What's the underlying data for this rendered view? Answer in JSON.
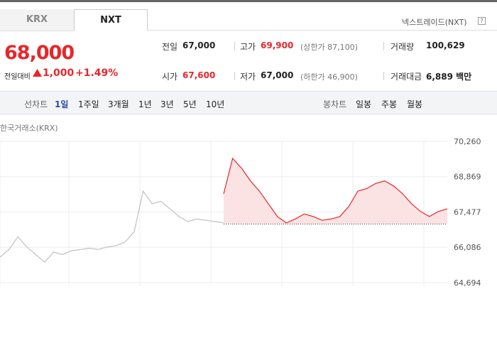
{
  "tabs": [
    "KRX",
    "NXT"
  ],
  "market_link": "넥스트레이드(NXT)",
  "help_icon": "?",
  "price": {
    "current": "68,000",
    "change_label": "전일대비",
    "change": "1,000",
    "change_pct": "+1.49%"
  },
  "stats": [
    [
      "전일",
      "67,000",
      ""
    ],
    [
      "고가",
      "69,900",
      "(상한가 87,100)"
    ],
    [
      "거래량",
      "100,629",
      ""
    ],
    [
      "시가",
      "67,600",
      ""
    ],
    [
      "저가",
      "67,000",
      "(하한가 46,900)"
    ],
    [
      "거래대금",
      "6,889 백만",
      ""
    ]
  ],
  "line_chart_label": "선차트",
  "line_periods": [
    "1일",
    "1주일",
    "3개월",
    "1년",
    "3년",
    "5년",
    "10년"
  ],
  "candle_chart_label": "봉차트",
  "candle_periods": [
    "일봉",
    "주봉",
    "월봉"
  ],
  "chart_data": {
    "type": "line",
    "title": "한국거래소(KRX)",
    "x": [
      0,
      1,
      2,
      3,
      4,
      5,
      6,
      7,
      8,
      9,
      10,
      11,
      12,
      13,
      14,
      15,
      16,
      17,
      18,
      19,
      20,
      21,
      22,
      23,
      24,
      25,
      26,
      27,
      28,
      29,
      30,
      31,
      32,
      33,
      34,
      35,
      36,
      37,
      38,
      39,
      40,
      41,
      42,
      43,
      44,
      45,
      46,
      47,
      48,
      49,
      50
    ],
    "xlim": [
      0,
      50
    ],
    "ylim": [
      64694,
      70260
    ],
    "yticks": [
      {
        "value": 70260,
        "label": "70,260"
      },
      {
        "value": 68869,
        "label": "68,869"
      },
      {
        "value": 67477,
        "label": "67,477"
      },
      {
        "value": 66086,
        "label": "66,086"
      },
      {
        "value": 64694,
        "label": "64,694"
      }
    ],
    "baseline": 67000,
    "grid": true,
    "series": [
      {
        "color": "#c0c0c0",
        "values": [
          65700,
          66000,
          66500,
          66100,
          65800,
          65500,
          65900,
          65800,
          65950,
          66000,
          66050,
          66000,
          66100,
          66150,
          66300,
          66700,
          68300,
          67800,
          67900,
          67600,
          67300,
          67100,
          67200,
          67150,
          67100,
          67050,
          null,
          null,
          null,
          null,
          null,
          null,
          null,
          null,
          null,
          null,
          null,
          null,
          null,
          null,
          null,
          null,
          null,
          null,
          null,
          null,
          null,
          null,
          null,
          null,
          null
        ]
      },
      {
        "color": "#e8262a",
        "values": [
          null,
          null,
          null,
          null,
          null,
          null,
          null,
          null,
          null,
          null,
          null,
          null,
          null,
          null,
          null,
          null,
          null,
          null,
          null,
          null,
          null,
          null,
          null,
          null,
          null,
          68190,
          69590,
          69200,
          68700,
          68300,
          67800,
          67300,
          67050,
          67200,
          67400,
          67300,
          67150,
          67200,
          67300,
          67700,
          68300,
          68400,
          68600,
          68700,
          68500,
          68200,
          67800,
          67500,
          67300,
          67500,
          67600
        ]
      }
    ]
  }
}
